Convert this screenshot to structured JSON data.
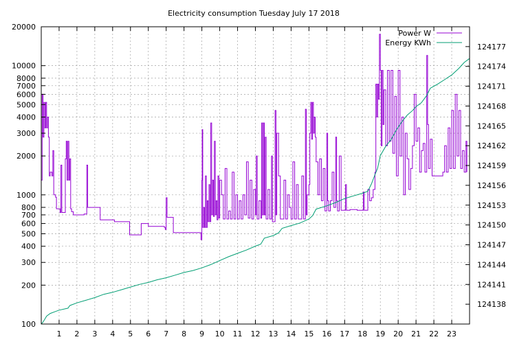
{
  "chart_data": {
    "type": "line",
    "title": "Electricity consumption Tuesday July 17 2018",
    "xlabel": "",
    "ylabel": "",
    "y2label": "",
    "xlim": [
      0,
      24
    ],
    "ylim": [
      100,
      20000
    ],
    "yscale": "log",
    "y2lim": [
      124135,
      124180
    ],
    "x_ticks": [
      1,
      2,
      3,
      4,
      5,
      6,
      7,
      8,
      9,
      10,
      11,
      12,
      13,
      14,
      15,
      16,
      17,
      18,
      19,
      20,
      21,
      22,
      23
    ],
    "y_ticks": [
      100,
      200,
      300,
      400,
      500,
      600,
      700,
      800,
      1000,
      2000,
      3000,
      4000,
      5000,
      6000,
      7000,
      8000,
      10000,
      20000
    ],
    "y2_ticks": [
      124138,
      124141,
      124144,
      124147,
      124150,
      124153,
      124156,
      124159,
      124162,
      124165,
      124168,
      124171,
      124174,
      124177
    ],
    "grid": true,
    "legend_position": "top-right",
    "series": [
      {
        "name": "Power W",
        "axis": "y",
        "color": "#9400d3",
        "points": [
          [
            0.0,
            1300
          ],
          [
            0.05,
            6000
          ],
          [
            0.1,
            2800
          ],
          [
            0.15,
            5200
          ],
          [
            0.2,
            3300
          ],
          [
            0.25,
            5200
          ],
          [
            0.3,
            3300
          ],
          [
            0.35,
            4000
          ],
          [
            0.4,
            2800
          ],
          [
            0.45,
            1400
          ],
          [
            0.5,
            1500
          ],
          [
            0.6,
            1400
          ],
          [
            0.65,
            2200
          ],
          [
            0.7,
            1000
          ],
          [
            0.8,
            960
          ],
          [
            0.85,
            780
          ],
          [
            0.9,
            780
          ],
          [
            1.0,
            780
          ],
          [
            1.05,
            730
          ],
          [
            1.1,
            1700
          ],
          [
            1.15,
            730
          ],
          [
            1.3,
            730
          ],
          [
            1.35,
            1900
          ],
          [
            1.4,
            2600
          ],
          [
            1.45,
            1300
          ],
          [
            1.5,
            2600
          ],
          [
            1.55,
            1300
          ],
          [
            1.6,
            1900
          ],
          [
            1.65,
            780
          ],
          [
            1.7,
            740
          ],
          [
            1.8,
            700
          ],
          [
            2.0,
            700
          ],
          [
            2.2,
            700
          ],
          [
            2.3,
            700
          ],
          [
            2.4,
            710
          ],
          [
            2.55,
            1700
          ],
          [
            2.6,
            800
          ],
          [
            2.8,
            800
          ],
          [
            3.0,
            800
          ],
          [
            3.2,
            800
          ],
          [
            3.3,
            640
          ],
          [
            3.6,
            640
          ],
          [
            4.0,
            640
          ],
          [
            4.1,
            620
          ],
          [
            4.5,
            620
          ],
          [
            4.9,
            620
          ],
          [
            4.95,
            490
          ],
          [
            5.2,
            490
          ],
          [
            5.5,
            490
          ],
          [
            5.6,
            600
          ],
          [
            5.9,
            600
          ],
          [
            6.0,
            570
          ],
          [
            6.5,
            570
          ],
          [
            6.9,
            560
          ],
          [
            6.95,
            540
          ],
          [
            7.0,
            950
          ],
          [
            7.05,
            670
          ],
          [
            7.2,
            670
          ],
          [
            7.4,
            510
          ],
          [
            8.0,
            510
          ],
          [
            8.5,
            510
          ],
          [
            8.9,
            510
          ],
          [
            8.95,
            450
          ],
          [
            9.0,
            1300
          ],
          [
            9.02,
            3200
          ],
          [
            9.05,
            560
          ],
          [
            9.1,
            800
          ],
          [
            9.15,
            560
          ],
          [
            9.2,
            1400
          ],
          [
            9.25,
            560
          ],
          [
            9.3,
            900
          ],
          [
            9.35,
            620
          ],
          [
            9.4,
            1200
          ],
          [
            9.45,
            620
          ],
          [
            9.5,
            3600
          ],
          [
            9.55,
            700
          ],
          [
            9.6,
            1300
          ],
          [
            9.65,
            680
          ],
          [
            9.7,
            2600
          ],
          [
            9.75,
            700
          ],
          [
            9.8,
            900
          ],
          [
            9.85,
            640
          ],
          [
            9.9,
            1400
          ],
          [
            9.95,
            660
          ],
          [
            10.0,
            1300
          ],
          [
            10.1,
            1000
          ],
          [
            10.2,
            650
          ],
          [
            10.3,
            1600
          ],
          [
            10.4,
            650
          ],
          [
            10.5,
            750
          ],
          [
            10.6,
            650
          ],
          [
            10.7,
            1500
          ],
          [
            10.8,
            650
          ],
          [
            10.9,
            1000
          ],
          [
            11.0,
            650
          ],
          [
            11.1,
            900
          ],
          [
            11.2,
            650
          ],
          [
            11.3,
            1000
          ],
          [
            11.4,
            700
          ],
          [
            11.5,
            1800
          ],
          [
            11.6,
            660
          ],
          [
            11.7,
            1300
          ],
          [
            11.8,
            650
          ],
          [
            11.9,
            1100
          ],
          [
            12.0,
            700
          ],
          [
            12.05,
            2000
          ],
          [
            12.1,
            650
          ],
          [
            12.2,
            900
          ],
          [
            12.3,
            660
          ],
          [
            12.35,
            3600
          ],
          [
            12.4,
            700
          ],
          [
            12.45,
            3600
          ],
          [
            12.5,
            700
          ],
          [
            12.55,
            2800
          ],
          [
            12.6,
            650
          ],
          [
            12.7,
            1100
          ],
          [
            12.8,
            650
          ],
          [
            12.9,
            2000
          ],
          [
            12.95,
            620
          ],
          [
            13.0,
            620
          ],
          [
            13.1,
            4500
          ],
          [
            13.15,
            700
          ],
          [
            13.2,
            3000
          ],
          [
            13.3,
            1400
          ],
          [
            13.4,
            650
          ],
          [
            13.5,
            650
          ],
          [
            13.6,
            1300
          ],
          [
            13.7,
            650
          ],
          [
            13.8,
            1000
          ],
          [
            13.9,
            800
          ],
          [
            14.0,
            650
          ],
          [
            14.1,
            1800
          ],
          [
            14.2,
            650
          ],
          [
            14.3,
            1200
          ],
          [
            14.4,
            650
          ],
          [
            14.5,
            650
          ],
          [
            14.6,
            1400
          ],
          [
            14.7,
            650
          ],
          [
            14.8,
            4600
          ],
          [
            14.85,
            700
          ],
          [
            14.9,
            1000
          ],
          [
            15.0,
            1200
          ],
          [
            15.05,
            3000
          ],
          [
            15.1,
            5200
          ],
          [
            15.15,
            2700
          ],
          [
            15.2,
            5200
          ],
          [
            15.25,
            3000
          ],
          [
            15.3,
            4000
          ],
          [
            15.35,
            2800
          ],
          [
            15.4,
            1800
          ],
          [
            15.5,
            1000
          ],
          [
            15.6,
            1900
          ],
          [
            15.7,
            900
          ],
          [
            15.8,
            1600
          ],
          [
            15.9,
            750
          ],
          [
            16.0,
            3000
          ],
          [
            16.05,
            900
          ],
          [
            16.1,
            750
          ],
          [
            16.2,
            900
          ],
          [
            16.3,
            1500
          ],
          [
            16.4,
            800
          ],
          [
            16.5,
            2800
          ],
          [
            16.55,
            900
          ],
          [
            16.6,
            750
          ],
          [
            16.7,
            2000
          ],
          [
            16.8,
            760
          ],
          [
            16.9,
            760
          ],
          [
            17.0,
            760
          ],
          [
            17.05,
            1200
          ],
          [
            17.1,
            760
          ],
          [
            17.3,
            770
          ],
          [
            17.5,
            770
          ],
          [
            17.7,
            760
          ],
          [
            18.0,
            760
          ],
          [
            18.05,
            1050
          ],
          [
            18.1,
            760
          ],
          [
            18.3,
            1100
          ],
          [
            18.4,
            900
          ],
          [
            18.5,
            950
          ],
          [
            18.6,
            1100
          ],
          [
            18.7,
            1500
          ],
          [
            18.75,
            7200
          ],
          [
            18.8,
            4000
          ],
          [
            18.85,
            7200
          ],
          [
            18.9,
            5500
          ],
          [
            18.95,
            17500
          ],
          [
            19.0,
            9200
          ],
          [
            19.05,
            2400
          ],
          [
            19.1,
            9200
          ],
          [
            19.15,
            3500
          ],
          [
            19.2,
            6500
          ],
          [
            19.3,
            2400
          ],
          [
            19.4,
            9200
          ],
          [
            19.5,
            2600
          ],
          [
            19.6,
            9200
          ],
          [
            19.7,
            2100
          ],
          [
            19.8,
            5800
          ],
          [
            19.9,
            1400
          ],
          [
            20.0,
            9200
          ],
          [
            20.1,
            2000
          ],
          [
            20.2,
            4000
          ],
          [
            20.3,
            1000
          ],
          [
            20.4,
            3000
          ],
          [
            20.5,
            1900
          ],
          [
            20.6,
            1100
          ],
          [
            20.7,
            1600
          ],
          [
            20.8,
            2400
          ],
          [
            20.9,
            6000
          ],
          [
            21.0,
            2600
          ],
          [
            21.1,
            3300
          ],
          [
            21.2,
            1500
          ],
          [
            21.3,
            2200
          ],
          [
            21.4,
            2500
          ],
          [
            21.5,
            1500
          ],
          [
            21.6,
            12000
          ],
          [
            21.65,
            3500
          ],
          [
            21.7,
            1600
          ],
          [
            21.8,
            2700
          ],
          [
            21.9,
            1400
          ],
          [
            22.0,
            1400
          ],
          [
            22.3,
            1400
          ],
          [
            22.5,
            1500
          ],
          [
            22.6,
            2400
          ],
          [
            22.7,
            1500
          ],
          [
            22.8,
            3300
          ],
          [
            22.9,
            1600
          ],
          [
            23.0,
            4500
          ],
          [
            23.1,
            1600
          ],
          [
            23.2,
            6000
          ],
          [
            23.3,
            2000
          ],
          [
            23.4,
            4500
          ],
          [
            23.5,
            1600
          ],
          [
            23.6,
            2200
          ],
          [
            23.7,
            1500
          ],
          [
            23.8,
            2600
          ],
          [
            23.85,
            1500
          ]
        ]
      },
      {
        "name": "Energy KWh",
        "axis": "y2",
        "color": "#009e73",
        "points": [
          [
            0.0,
            124135.0
          ],
          [
            0.1,
            124135.3
          ],
          [
            0.3,
            124136.2
          ],
          [
            0.5,
            124136.6
          ],
          [
            0.8,
            124136.9
          ],
          [
            1.0,
            124137.1
          ],
          [
            1.5,
            124137.4
          ],
          [
            1.6,
            124137.8
          ],
          [
            2.0,
            124138.2
          ],
          [
            2.5,
            124138.6
          ],
          [
            3.0,
            124139.0
          ],
          [
            3.5,
            124139.5
          ],
          [
            4.0,
            124139.8
          ],
          [
            4.5,
            124140.2
          ],
          [
            5.0,
            124140.6
          ],
          [
            5.5,
            124141.0
          ],
          [
            6.0,
            124141.3
          ],
          [
            6.5,
            124141.7
          ],
          [
            7.0,
            124142.0
          ],
          [
            7.5,
            124142.4
          ],
          [
            8.0,
            124142.8
          ],
          [
            8.5,
            124143.1
          ],
          [
            9.0,
            124143.5
          ],
          [
            9.5,
            124144.0
          ],
          [
            10.0,
            124144.6
          ],
          [
            10.5,
            124145.2
          ],
          [
            11.0,
            124145.7
          ],
          [
            11.5,
            124146.2
          ],
          [
            12.0,
            124146.8
          ],
          [
            12.3,
            124147.1
          ],
          [
            12.5,
            124148.0
          ],
          [
            13.0,
            124148.4
          ],
          [
            13.3,
            124148.8
          ],
          [
            13.5,
            124149.5
          ],
          [
            14.0,
            124149.9
          ],
          [
            14.5,
            124150.3
          ],
          [
            15.0,
            124150.9
          ],
          [
            15.2,
            124151.4
          ],
          [
            15.4,
            124152.4
          ],
          [
            16.0,
            124152.9
          ],
          [
            16.5,
            124153.4
          ],
          [
            17.0,
            124154.0
          ],
          [
            17.5,
            124154.4
          ],
          [
            18.0,
            124154.8
          ],
          [
            18.3,
            124155.1
          ],
          [
            18.5,
            124156.2
          ],
          [
            18.7,
            124157.6
          ],
          [
            18.85,
            124158.6
          ],
          [
            19.0,
            124160.5
          ],
          [
            19.3,
            124161.9
          ],
          [
            19.6,
            124162.9
          ],
          [
            19.9,
            124164.4
          ],
          [
            20.2,
            124165.6
          ],
          [
            20.5,
            124166.6
          ],
          [
            20.8,
            124167.3
          ],
          [
            21.0,
            124167.9
          ],
          [
            21.3,
            124168.5
          ],
          [
            21.6,
            124169.6
          ],
          [
            21.8,
            124170.7
          ],
          [
            22.2,
            124171.3
          ],
          [
            22.6,
            124172.0
          ],
          [
            23.0,
            124172.7
          ],
          [
            23.4,
            124173.7
          ],
          [
            23.7,
            124174.6
          ],
          [
            24.0,
            124175.2
          ]
        ]
      }
    ]
  }
}
